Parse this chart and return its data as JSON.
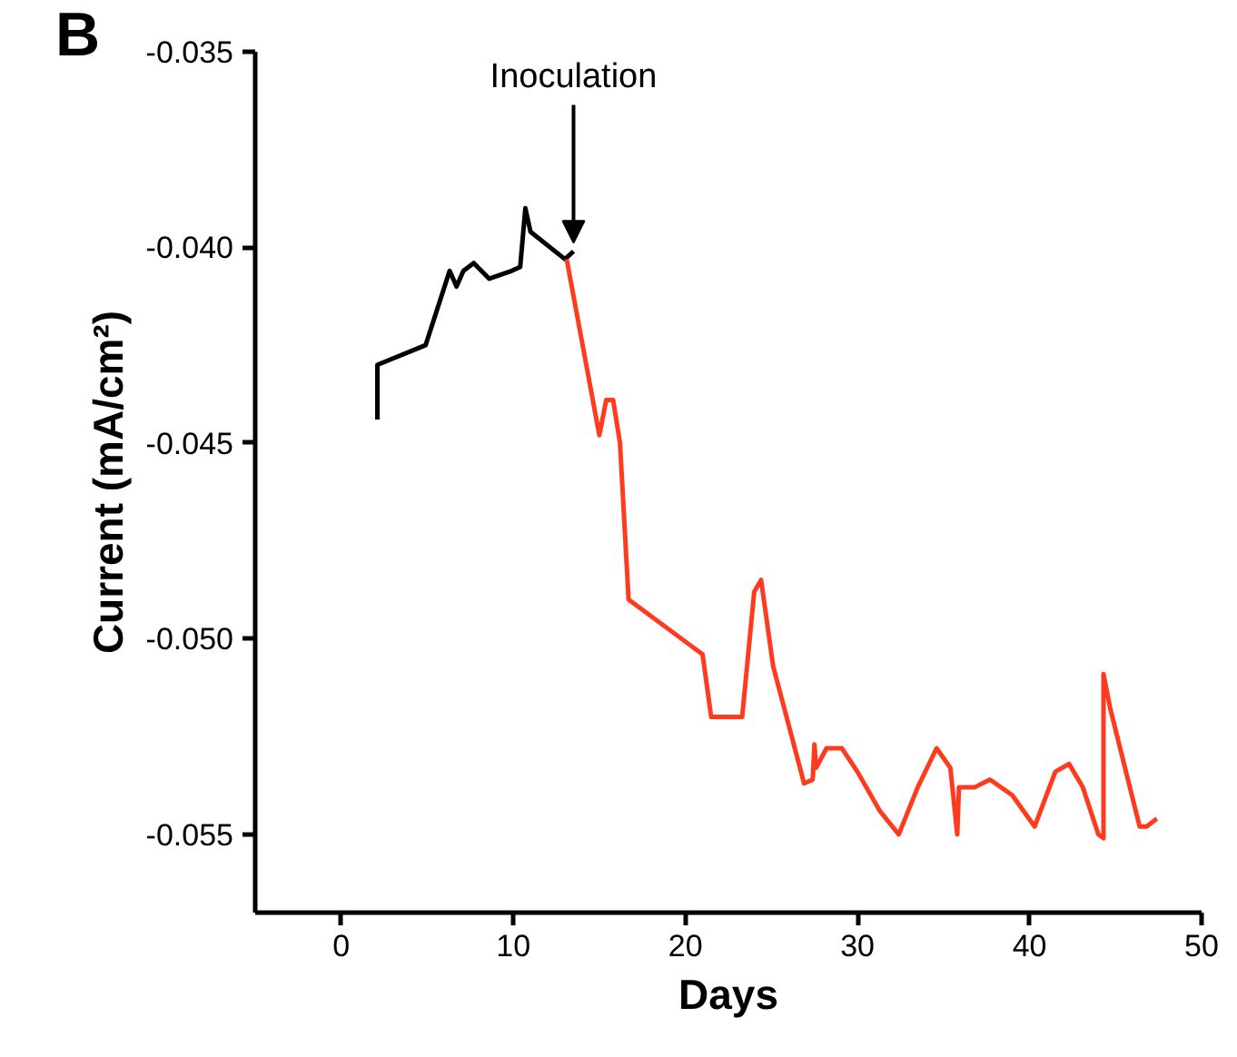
{
  "chart_data": {
    "type": "line",
    "xlabel": "Days",
    "ylabel": "Current (mA/cm²)",
    "xlim": [
      -5,
      50
    ],
    "xticks": [
      0,
      10,
      20,
      30,
      40,
      50
    ],
    "ylim": [
      -0.057,
      -0.035
    ],
    "yticks": [
      {
        "value": -0.035,
        "label": "-0.035"
      },
      {
        "value": -0.04,
        "label": "-0.040"
      },
      {
        "value": -0.045,
        "label": "-0.045"
      },
      {
        "value": -0.05,
        "label": "-0.050"
      },
      {
        "value": -0.055,
        "label": "-0.055"
      }
    ],
    "grid": false,
    "annotations": [
      "B",
      {
        "text": "Inoculation",
        "x": 13.5,
        "y": -0.0401
      }
    ],
    "series": [
      {
        "color": "#000000",
        "x": [
          2.1,
          2.1,
          4.9,
          6.3,
          6.7,
          7.1,
          7.7,
          8.6,
          9.9,
          10.4,
          10.7,
          11.0,
          13.0,
          13.5
        ],
        "values": [
          -0.0444,
          -0.043,
          -0.0425,
          -0.0406,
          -0.041,
          -0.0406,
          -0.0404,
          -0.0408,
          -0.0406,
          -0.0405,
          -0.039,
          -0.0396,
          -0.0403,
          -0.0401
        ]
      },
      {
        "color": "#ff3b1f",
        "x": [
          13.1,
          15.0,
          15.4,
          15.8,
          16.2,
          16.7,
          21.0,
          21.5,
          23.3,
          24.0,
          24.4,
          25.1,
          26.9,
          27.4,
          27.5,
          27.6,
          28.2,
          29.1,
          30.0,
          31.3,
          32.4,
          33.5,
          34.6,
          35.4,
          35.8,
          35.9,
          36.8,
          37.7,
          39.0,
          40.3,
          41.5,
          42.3,
          43.1,
          44.0,
          44.3,
          44.3,
          44.7,
          46.4,
          46.8,
          47.4
        ],
        "values": [
          -0.0403,
          -0.0448,
          -0.0439,
          -0.0439,
          -0.045,
          -0.049,
          -0.0504,
          -0.052,
          -0.052,
          -0.0488,
          -0.0485,
          -0.0507,
          -0.0537,
          -0.0536,
          -0.0527,
          -0.0533,
          -0.0528,
          -0.0528,
          -0.0534,
          -0.0544,
          -0.055,
          -0.0538,
          -0.0528,
          -0.0533,
          -0.055,
          -0.0538,
          -0.0538,
          -0.0536,
          -0.054,
          -0.0548,
          -0.0534,
          -0.0532,
          -0.0538,
          -0.055,
          -0.0551,
          -0.0509,
          -0.0518,
          -0.0548,
          -0.0548,
          -0.0546
        ]
      }
    ]
  }
}
